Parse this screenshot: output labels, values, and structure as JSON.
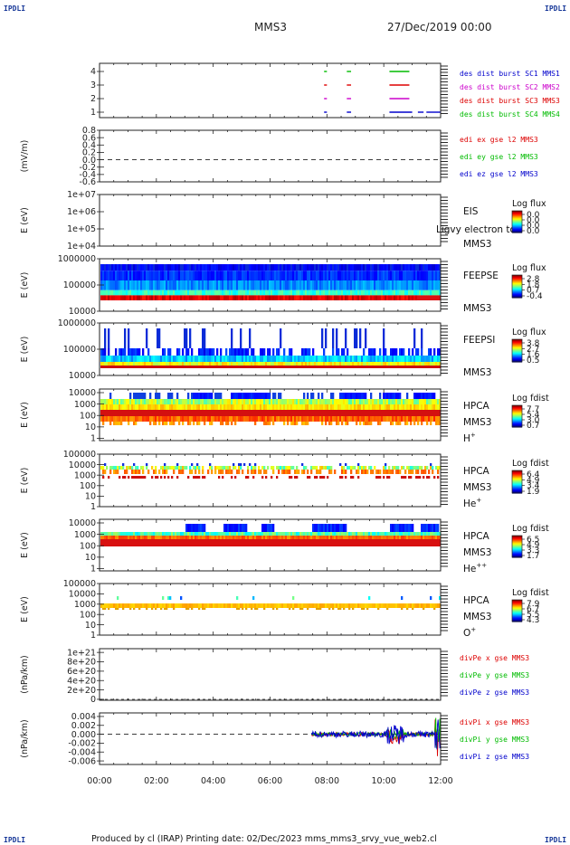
{
  "corners": {
    "tl": "IPDLI",
    "tr": "IPDLI",
    "bl": "IPDLI",
    "br": "IPDLI"
  },
  "header": {
    "spacecraft": "MMS3",
    "date": "27/Dec/2019 00:00"
  },
  "footer": {
    "text": "Produced by cl (IRAP)   Printing date: 02/Dec/2023   mms_mms3_srvy_vue_web2.cl"
  },
  "colors": {
    "mms1": "#00bb00",
    "mms2": "#cc00cc",
    "mms3": "#dd0000",
    "mms4": "#0000cc",
    "text": "#222222"
  },
  "chart_data": [
    {
      "type": "line",
      "name": "burst-availability",
      "ylim": [
        0.6,
        4.6
      ],
      "xlim": [
        0,
        12
      ],
      "yticks": [
        "4",
        "3",
        "2",
        "1"
      ],
      "legend": [
        {
          "label": "des dist burst SC1 MMS1",
          "color": "#0000cc"
        },
        {
          "label": "des dist burst SC2 MMS2",
          "color": "#cc00cc"
        },
        {
          "label": "des dist burst SC3 MMS3",
          "color": "#dd0000"
        },
        {
          "label": "des dist burst SC4 MMS4",
          "color": "#00bb00"
        }
      ],
      "segments": [
        {
          "level": 4,
          "color": "#00bb00",
          "x": [
            [
              7.9,
              8.0
            ],
            [
              8.7,
              8.85
            ],
            [
              10.2,
              10.9
            ]
          ]
        },
        {
          "level": 3,
          "color": "#dd0000",
          "x": [
            [
              7.9,
              8.0
            ],
            [
              8.7,
              8.85
            ],
            [
              10.2,
              10.9
            ]
          ]
        },
        {
          "level": 2,
          "color": "#cc00cc",
          "x": [
            [
              7.9,
              8.0
            ],
            [
              8.7,
              8.85
            ],
            [
              10.2,
              10.9
            ]
          ]
        },
        {
          "level": 1,
          "color": "#0000cc",
          "x": [
            [
              7.9,
              8.0
            ],
            [
              8.7,
              8.85
            ],
            [
              10.2,
              11.0
            ],
            [
              11.2,
              11.4
            ],
            [
              11.5,
              12.0
            ]
          ]
        }
      ]
    },
    {
      "type": "line",
      "name": "edi-e-field",
      "ylabel": "(mV/m)",
      "ylim": [
        -0.6,
        0.8
      ],
      "yticks": [
        "0.8",
        "0.6",
        "0.4",
        "0.2",
        "0.0",
        "-0.2",
        "-0.4",
        "-0.6"
      ],
      "dashed_zero": true,
      "legend": [
        {
          "label": "edi ex gse l2 MMS3",
          "color": "#dd0000"
        },
        {
          "label": "edi ey gse l2 MMS3",
          "color": "#00bb00"
        },
        {
          "label": "edi ez gse l2 MMS3",
          "color": "#0000cc"
        }
      ]
    },
    {
      "type": "heatmap",
      "name": "eis",
      "ylabel": "E (eV)",
      "yticks": [
        "1e+07",
        "1e+06",
        "1e+05",
        "1e+04"
      ],
      "instrument": [
        "EIS",
        "",
        "MMS3"
      ],
      "overlap_text": "Ligvy electron to",
      "colorbar": {
        "title": "Log flux",
        "ticks": [
          "0.0",
          "0.0",
          "0.0",
          "0.0"
        ]
      }
    },
    {
      "type": "heatmap",
      "name": "feeps-electrons",
      "ylabel": "E (eV)",
      "yticks": [
        "1000000",
        "100000",
        "10000"
      ],
      "instrument": [
        "FEEPSE",
        "",
        "MMS3"
      ],
      "colorbar": {
        "title": "Log flux",
        "ticks": [
          "2.8",
          "1.8",
          "0.7",
          "-0.4"
        ]
      }
    },
    {
      "type": "heatmap",
      "name": "feeps-ions",
      "ylabel": "E (eV)",
      "yticks": [
        "1000000",
        "100000",
        "10000"
      ],
      "instrument": [
        "FEEPSI",
        "",
        "MMS3"
      ],
      "colorbar": {
        "title": "Log flux",
        "ticks": [
          "3.8",
          "2.7",
          "1.6",
          "0.5"
        ]
      }
    },
    {
      "type": "heatmap",
      "name": "hpca-h",
      "ylabel": "E (eV)",
      "yticks": [
        "10000",
        "1000",
        "100",
        "10",
        "1"
      ],
      "instrument": [
        "HPCA",
        "MMS3",
        "H"
      ],
      "species_sup": "+",
      "colorbar": {
        "title": "Log fdist",
        "ticks": [
          "7.7",
          "5.4",
          "3.0",
          "0.7"
        ]
      }
    },
    {
      "type": "heatmap",
      "name": "hpca-he",
      "ylabel": "E (eV)",
      "yticks": [
        "100000",
        "10000",
        "1000",
        "100",
        "10",
        "1"
      ],
      "instrument": [
        "HPCA",
        "MMS3",
        "He"
      ],
      "species_sup": "+",
      "colorbar": {
        "title": "Log fdist",
        "ticks": [
          "6.4",
          "4.9",
          "3.4",
          "1.9"
        ]
      }
    },
    {
      "type": "heatmap",
      "name": "hpca-he2",
      "ylabel": "E (eV)",
      "yticks": [
        "10000",
        "1000",
        "100",
        "10",
        "1"
      ],
      "instrument": [
        "HPCA",
        "MMS3",
        "He"
      ],
      "species_sup": "++",
      "colorbar": {
        "title": "Log fdist",
        "ticks": [
          "6.5",
          "4.9",
          "3.3",
          "1.7"
        ]
      }
    },
    {
      "type": "heatmap",
      "name": "hpca-o",
      "ylabel": "E (eV)",
      "yticks": [
        "100000",
        "10000",
        "1000",
        "100",
        "10",
        "1"
      ],
      "instrument": [
        "HPCA",
        "MMS3",
        "O"
      ],
      "species_sup": "+",
      "colorbar": {
        "title": "Log fdist",
        "ticks": [
          "7.9",
          "6.7",
          "5.5",
          "4.3"
        ]
      }
    },
    {
      "type": "line",
      "name": "div-pe",
      "ylabel": "(nPa/km)",
      "yticks": [
        "1e+21",
        "8e+20",
        "6e+20",
        "4e+20",
        "2e+20",
        "0"
      ],
      "ylim": [
        -2e+19,
        1.08e+21
      ],
      "legend": [
        {
          "label": "divPe x gse MMS3",
          "color": "#dd0000"
        },
        {
          "label": "divPe y gse MMS3",
          "color": "#00bb00"
        },
        {
          "label": "divPe z gse MMS3",
          "color": "#0000cc"
        }
      ]
    },
    {
      "type": "line",
      "name": "div-pi",
      "ylabel": "(nPa/km)",
      "yticks": [
        "0.004",
        "0.002",
        "0.000",
        "-0.002",
        "-0.004",
        "-0.006"
      ],
      "ylim": [
        -0.0068,
        0.0048
      ],
      "dashed_zero": true,
      "legend": [
        {
          "label": "divPi x gse MMS3",
          "color": "#dd0000"
        },
        {
          "label": "divPi y gse MMS3",
          "color": "#00bb00"
        },
        {
          "label": "divPi z gse MMS3",
          "color": "#0000cc"
        }
      ]
    }
  ],
  "xaxis": {
    "ticks": [
      "00:00",
      "02:00",
      "04:00",
      "06:00",
      "08:00",
      "10:00",
      "12:00"
    ],
    "xlim": [
      0,
      12
    ]
  }
}
